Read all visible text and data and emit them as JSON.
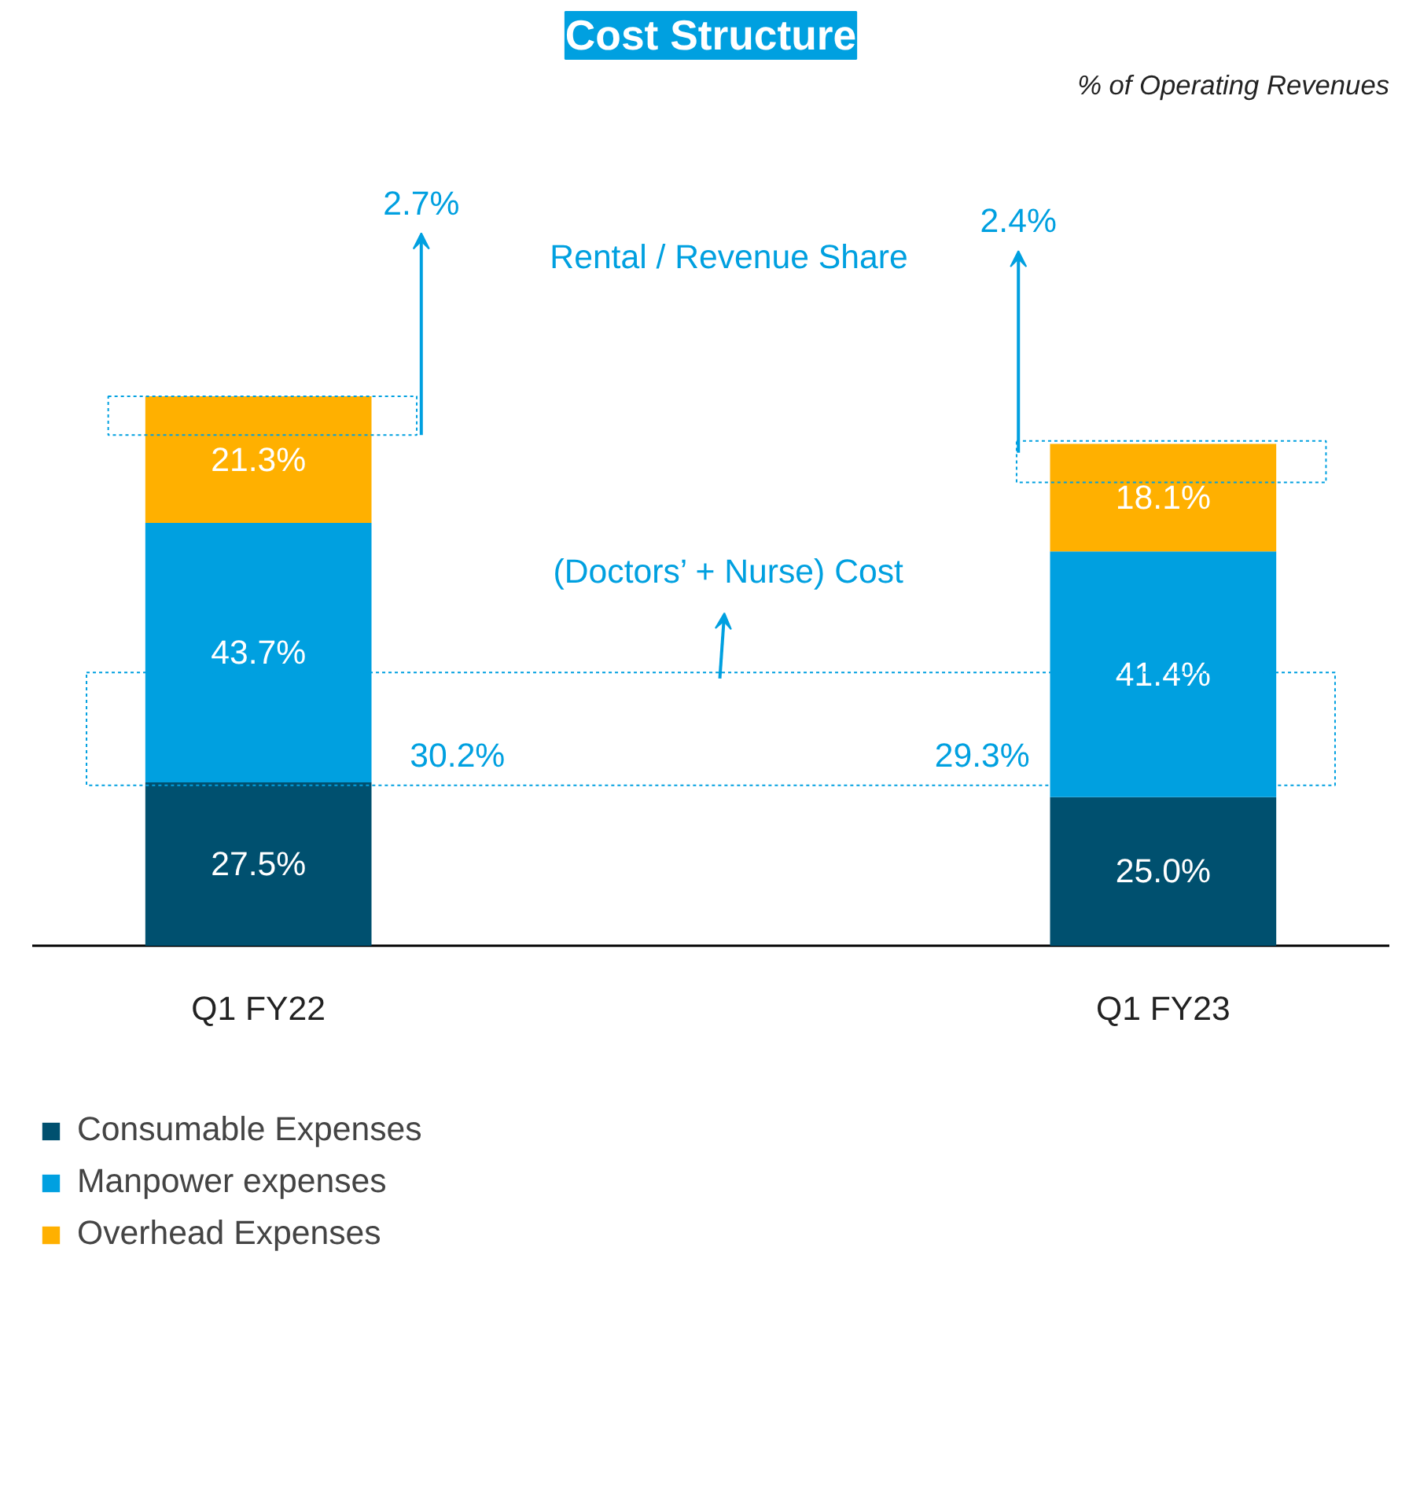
{
  "chart_data": {
    "type": "bar",
    "title": "Cost Structure",
    "stacked": true,
    "legend": "bottom left",
    "grid": false,
    "categories": [
      "Q1 FY22",
      "Q1 FY23"
    ],
    "series": [
      {
        "name": "Consumable Expenses",
        "color": "#00506f",
        "values": [
          27.5,
          25.0
        ],
        "value_labels": [
          "27.5%",
          "25.0%"
        ]
      },
      {
        "name": "Manpower expenses",
        "color": "#00a0e0",
        "values": [
          43.7,
          41.4
        ],
        "value_labels": [
          "43.7%",
          "41.4%"
        ]
      },
      {
        "name": "Overhead Expenses",
        "color": "#ffb000",
        "values": [
          21.3,
          18.1
        ],
        "value_labels": [
          "21.3%",
          "18.1%"
        ]
      }
    ],
    "annotations": [
      "% of Operating Revenues",
      "Rental / Revenue Share",
      "2.7%",
      "2.4%",
      "(Doctors’ + Nurse) Cost",
      "30.2%",
      "29.3%"
    ]
  }
}
